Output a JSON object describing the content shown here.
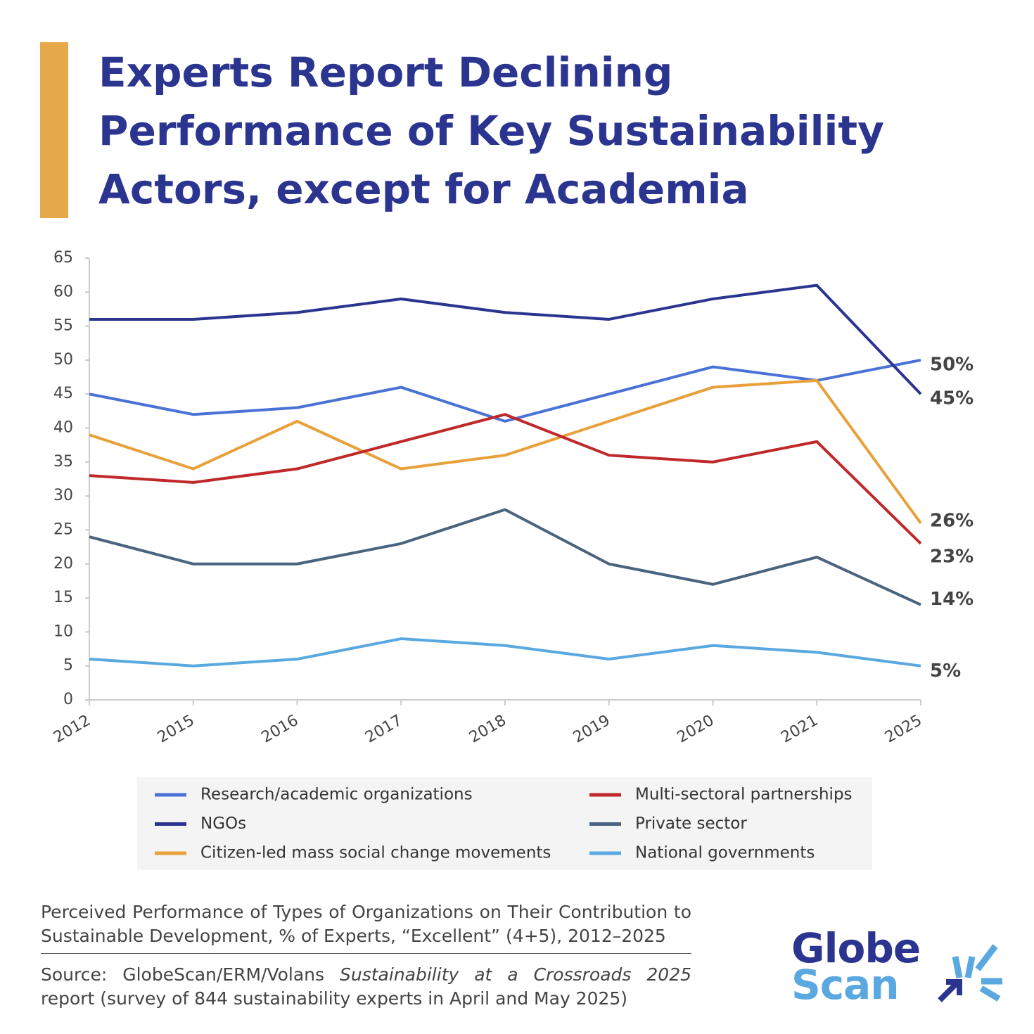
{
  "chart_data": {
    "type": "line",
    "title": "Experts Report Declining Performance of Key Sustainability Actors, except for Academia",
    "categories": [
      "2012",
      "2015",
      "2016",
      "2017",
      "2018",
      "2019",
      "2020",
      "2021",
      "2025"
    ],
    "ylim": [
      0,
      65
    ],
    "yticks": [
      0,
      5,
      10,
      15,
      20,
      25,
      30,
      35,
      40,
      45,
      50,
      55,
      60,
      65
    ],
    "series": [
      {
        "name": "Research/academic organizations",
        "color": "#4a72d6",
        "values": [
          45,
          42,
          43,
          46,
          41,
          45,
          49,
          47,
          50
        ],
        "value_labels": [
          null,
          null,
          null,
          null,
          null,
          null,
          null,
          null,
          "50%"
        ]
      },
      {
        "name": "NGOs",
        "color": "#2b3590",
        "values": [
          56,
          56,
          57,
          59,
          57,
          56,
          59,
          61,
          45
        ],
        "value_labels": [
          null,
          null,
          null,
          null,
          null,
          null,
          null,
          null,
          "45%"
        ]
      },
      {
        "name": "Citizen-led mass social change movements",
        "color": "#e8a03a",
        "values": [
          39,
          34,
          41,
          34,
          36,
          41,
          46,
          47,
          26
        ],
        "value_labels": [
          null,
          null,
          null,
          null,
          null,
          null,
          null,
          null,
          "26%"
        ]
      },
      {
        "name": "Multi-sectoral partnerships",
        "color": "#c0282a",
        "values": [
          33,
          32,
          34,
          38,
          42,
          36,
          35,
          38,
          23
        ],
        "value_labels": [
          null,
          null,
          null,
          null,
          null,
          null,
          null,
          null,
          "23%"
        ]
      },
      {
        "name": "Private sector",
        "color": "#4a6480",
        "values": [
          24,
          20,
          20,
          23,
          28,
          20,
          17,
          21,
          14
        ],
        "value_labels": [
          null,
          null,
          null,
          null,
          null,
          null,
          null,
          null,
          "14%"
        ]
      },
      {
        "name": "National governments",
        "color": "#5aa8e0",
        "values": [
          6,
          5,
          6,
          9,
          8,
          6,
          8,
          7,
          5
        ],
        "value_labels": [
          null,
          null,
          null,
          null,
          null,
          null,
          null,
          null,
          "5%"
        ]
      }
    ],
    "note": "Perceived Performance of Types of Organizations on Their Contribution to Sustainable Development, % of Experts, “Excellent” (4+5), 2012–2025",
    "source": {
      "prefix": "Source: GlobeScan/ERM/Volans",
      "report": "Sustainability at a Crossroads 2025",
      "suffix": "report (survey of 844 sustainability experts in April and May 2025)"
    },
    "logo": {
      "line1": "Globe",
      "line2": "Scan"
    }
  }
}
